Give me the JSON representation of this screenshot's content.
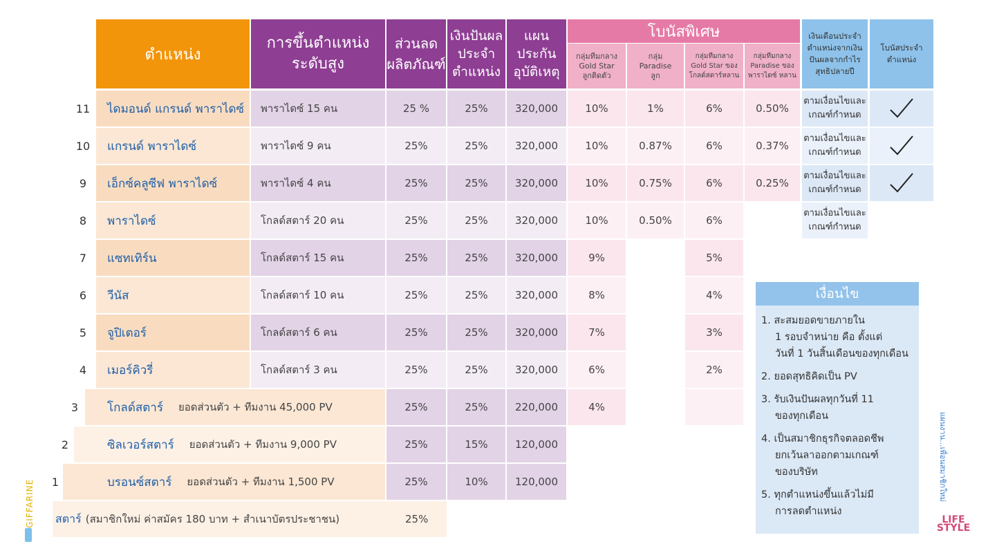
{
  "headers": {
    "position": "ตำแหน่ง",
    "promotion": [
      "การขึ้นตำแหน่ง",
      "ระดับสูง"
    ],
    "discount": [
      "ส่วนลด",
      "ผลิตภัณฑ์"
    ],
    "dividend": [
      "เงินปันผล",
      "ประจำ",
      "ตำแหน่ง"
    ],
    "insurance": [
      "แผน",
      "ประกัน",
      "อุบัติเหตุ"
    ],
    "bonus_special": "โบนัสพิเศษ",
    "bonus_sub": [
      [
        "กลุ่มทีมกลาง",
        "Gold Star",
        "ลูกติดตัว"
      ],
      [
        "กลุ่ม",
        "Paradise",
        "ลูก"
      ],
      [
        "กลุ่มทีมกลาง",
        "Gold Star ของ",
        "โกลด์สตาร์หลาน"
      ],
      [
        "กลุ่มทีมกลาง",
        "Paradise ของ",
        "พาราไดซ์ หลาน"
      ]
    ],
    "monthly_salary": [
      "เงินเดือนประจำ",
      "ตำแหน่งจากเงิน",
      "ปันผลจากกำไร",
      "สุทธิปลายปี"
    ],
    "position_bonus": [
      "โบนัสประจำ",
      "ตำแหน่ง"
    ]
  },
  "rows": [
    {
      "num": "11",
      "title": "ไดมอนด์ แกรนด์ พาราไดซ์",
      "req": "พาราไดซ์ 15 คน",
      "discount": "25 %",
      "dividend": "25%",
      "insurance": "320,000",
      "b1": "10%",
      "b2": "1%",
      "b3": "6%",
      "b4": "0.50%",
      "salary": [
        "ตามเงื่อนไขและ",
        "เกณฑ์กำหนด"
      ],
      "check": true
    },
    {
      "num": "10",
      "title": "แกรนด์ พาราไดซ์",
      "req": "พาราไดซ์ 9 คน",
      "discount": "25%",
      "dividend": "25%",
      "insurance": "320,000",
      "b1": "10%",
      "b2": "0.87%",
      "b3": "6%",
      "b4": "0.37%",
      "salary": [
        "ตามเงื่อนไขและ",
        "เกณฑ์กำหนด"
      ],
      "check": true
    },
    {
      "num": "9",
      "title": "เอ็กซ์คลูซีฟ พาราไดซ์",
      "req": "พาราไดซ์ 4 คน",
      "discount": "25%",
      "dividend": "25%",
      "insurance": "320,000",
      "b1": "10%",
      "b2": "0.75%",
      "b3": "6%",
      "b4": "0.25%",
      "salary": [
        "ตามเงื่อนไขและ",
        "เกณฑ์กำหนด"
      ],
      "check": true
    },
    {
      "num": "8",
      "title": "พาราไดซ์",
      "req": "โกลด์สตาร์ 20 คน",
      "discount": "25%",
      "dividend": "25%",
      "insurance": "320,000",
      "b1": "10%",
      "b2": "0.50%",
      "b3": "6%",
      "b4": "",
      "salary": [
        "ตามเงื่อนไขและ",
        "เกณฑ์กำหนด"
      ],
      "check": false
    },
    {
      "num": "7",
      "title": "แซทเทิร์น",
      "req": "โกลด์สตาร์ 15 คน",
      "discount": "25%",
      "dividend": "25%",
      "insurance": "320,000",
      "b1": "9%",
      "b2": "",
      "b3": "5%"
    },
    {
      "num": "6",
      "title": "วีนัส",
      "req": "โกลด์สตาร์ 10 คน",
      "discount": "25%",
      "dividend": "25%",
      "insurance": "320,000",
      "b1": "8%",
      "b2": "",
      "b3": "4%"
    },
    {
      "num": "5",
      "title": "จูปิเตอร์",
      "req": "โกลด์สตาร์ 6 คน",
      "discount": "25%",
      "dividend": "25%",
      "insurance": "320,000",
      "b1": "7%",
      "b2": "",
      "b3": "3%"
    },
    {
      "num": "4",
      "title": "เมอร์คิวรี่",
      "req": "โกลด์สตาร์ 3 คน",
      "discount": "25%",
      "dividend": "25%",
      "insurance": "320,000",
      "b1": "6%",
      "b2": "",
      "b3": "2%"
    }
  ],
  "lower_rows": [
    {
      "num": "3",
      "title": "โกลด์สตาร์",
      "req": "ยอดส่วนตัว + ทีมงาน 45,000 PV",
      "discount": "25%",
      "dividend": "25%",
      "insurance": "220,000",
      "b1": "4%"
    },
    {
      "num": "2",
      "title": "ซิลเวอร์สตาร์",
      "req": "ยอดส่วนตัว + ทีมงาน 9,000 PV",
      "discount": "25%",
      "dividend": "15%",
      "insurance": "120,000"
    },
    {
      "num": "1",
      "title": "บรอนซ์สตาร์",
      "req": "ยอดส่วนตัว + ทีมงาน 1,500 PV",
      "discount": "25%",
      "dividend": "10%",
      "insurance": "120,000"
    }
  ],
  "star_row": {
    "title": "สตาร์",
    "req": "(สมาชิกใหม่ ค่าสมัคร 180 บาท + สำเนาบัตรประชาชน)",
    "discount": "25%"
  },
  "conditions": {
    "title": "เงื่อนไข",
    "items": [
      [
        "1. สะสมยอดขายภายใน",
        "1 รอบจำหน่าย คือ ตั้งแต่",
        "วันที่ 1 วันสิ้นเดือนของทุกเดือน"
      ],
      [
        "2. ยอดสุทธิคิดเป็น PV"
      ],
      [
        "3. รับเงินปันผลทุกวันที่ 11",
        "ของทุกเดือน"
      ],
      [
        "4. เป็นสมาชิกธุรกิจตลอดชีพ",
        "ยกเว้นลาออกตามเกณฑ์",
        "ของบริษัท"
      ],
      [
        "5. ทุกตำแหน่งขึ้นแล้วไม่มี",
        "การลดตำแหน่ง"
      ]
    ]
  },
  "side_note": "แผนงาน...เพื่อนสมาชิกใหม่",
  "brand": "GIFFARINE",
  "corner_logo": [
    "LIFE",
    "STYLE"
  ],
  "colors": {
    "orange": "#f2950a",
    "purple": "#8e3e93",
    "pink": "#e57aa6",
    "blue": "#8ec2ea",
    "title_blue": "#1f5fa8"
  }
}
